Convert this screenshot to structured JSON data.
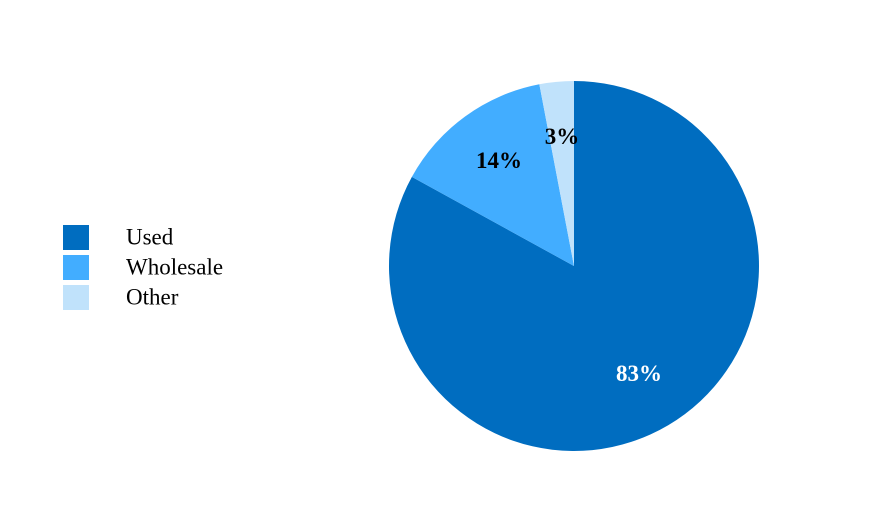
{
  "chart_data": {
    "type": "pie",
    "categories": [
      "Used",
      "Wholesale",
      "Other"
    ],
    "values": [
      83,
      14,
      3
    ],
    "value_labels": [
      "83%",
      "14%",
      "3%"
    ],
    "colors": [
      "#006dc0",
      "#42adff",
      "#c0e2fb"
    ],
    "legend": "left"
  }
}
